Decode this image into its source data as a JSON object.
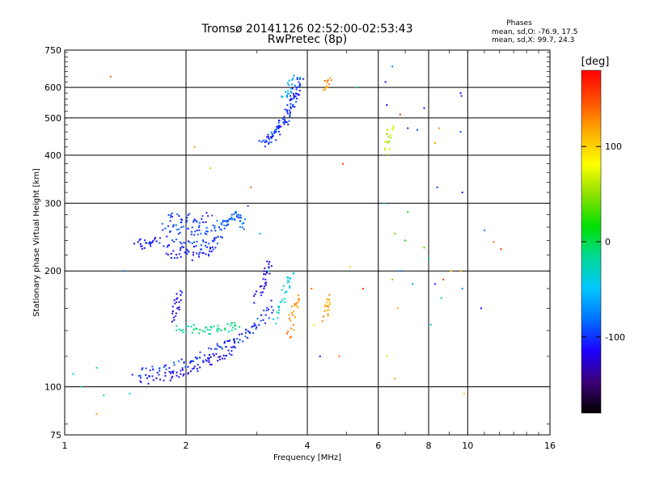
{
  "chart_data": {
    "type": "scatter",
    "title": "Tromsø 20141126 02:52:00-02:53:43",
    "subtitle": "RwPretec (8p)",
    "stats": {
      "header": "Phases",
      "line1": "mean, sd,O: -76.9, 17.5",
      "line2": "mean, sd,X:  99.7, 24.3"
    },
    "xlabel": "Frequency [MHz]",
    "ylabel": "Stationary phase Virtual Height [km]",
    "xscale": "log",
    "yscale": "log",
    "xlim": [
      1,
      16
    ],
    "ylim": [
      75,
      750
    ],
    "xticks": [
      1,
      2,
      4,
      6,
      8,
      10,
      16
    ],
    "yticks": [
      75,
      100,
      200,
      300,
      400,
      500,
      600,
      750
    ],
    "xgrid": [
      2,
      4,
      6,
      8,
      10
    ],
    "ygrid": [
      100,
      200,
      300,
      400,
      500,
      600
    ],
    "grid": true,
    "colorbar": {
      "label": "[deg]",
      "range": [
        -180,
        180
      ],
      "ticks": [
        100,
        0,
        -100
      ],
      "colormap": [
        "#000000",
        "#3c0078",
        "#1c00ff",
        "#0070ff",
        "#00c8ff",
        "#00d898",
        "#00e000",
        "#8ce000",
        "#ffff00",
        "#ffb000",
        "#ff5000",
        "#ff0000"
      ]
    },
    "series": [
      {
        "traces": [
          {
            "pts": [
              [
                3.1,
                425
              ],
              [
                3.2,
                440
              ],
              [
                3.3,
                455
              ],
              [
                3.4,
                470
              ],
              [
                3.5,
                490
              ],
              [
                3.6,
                515
              ],
              [
                3.65,
                540
              ],
              [
                3.7,
                565
              ],
              [
                3.75,
                590
              ],
              [
                3.8,
                615
              ],
              [
                3.85,
                635
              ]
            ],
            "phase": -95
          },
          {
            "pts": [
              [
                3.15,
                430
              ],
              [
                3.25,
                445
              ],
              [
                3.35,
                462
              ],
              [
                3.45,
                480
              ],
              [
                3.55,
                500
              ],
              [
                3.62,
                525
              ],
              [
                3.68,
                552
              ],
              [
                3.73,
                578
              ],
              [
                3.78,
                605
              ]
            ],
            "phase": -110
          },
          {
            "pts": [
              [
                3.5,
                560
              ],
              [
                3.55,
                585
              ],
              [
                3.6,
                610
              ],
              [
                3.65,
                630
              ]
            ],
            "phase": -60
          },
          {
            "pts": [
              [
                1.75,
                240
              ],
              [
                1.85,
                236
              ],
              [
                1.95,
                233
              ],
              [
                2.05,
                232
              ],
              [
                2.15,
                233
              ],
              [
                2.25,
                236
              ],
              [
                2.35,
                240
              ],
              [
                2.45,
                245
              ]
            ],
            "phase": -100
          },
          {
            "pts": [
              [
                1.8,
                225
              ],
              [
                1.9,
                221
              ],
              [
                2.0,
                219
              ],
              [
                2.1,
                220
              ],
              [
                2.2,
                222
              ],
              [
                2.3,
                226
              ],
              [
                2.4,
                231
              ]
            ],
            "phase": -105
          },
          {
            "pts": [
              [
                1.75,
                260
              ],
              [
                1.85,
                257
              ],
              [
                1.95,
                255
              ],
              [
                2.05,
                254
              ],
              [
                2.15,
                255
              ],
              [
                2.25,
                257
              ],
              [
                2.35,
                260
              ],
              [
                2.45,
                264
              ]
            ],
            "phase": -92
          },
          {
            "pts": [
              [
                1.8,
                275
              ],
              [
                1.9,
                275
              ],
              [
                2.0,
                274
              ],
              [
                2.1,
                274
              ],
              [
                2.2,
                275
              ],
              [
                2.3,
                276
              ]
            ],
            "phase": -100
          },
          {
            "pts": [
              [
                2.45,
                255
              ],
              [
                2.5,
                265
              ],
              [
                2.55,
                272
              ],
              [
                2.6,
                278
              ],
              [
                2.65,
                282
              ],
              [
                2.7,
                276
              ],
              [
                2.75,
                268
              ],
              [
                2.8,
                260
              ]
            ],
            "phase": -85
          },
          {
            "pts": [
              [
                1.5,
                240
              ],
              [
                1.55,
                236
              ],
              [
                1.6,
                233
              ],
              [
                1.65,
                238
              ],
              [
                1.7,
                243
              ]
            ],
            "phase": -110
          },
          {
            "pts": [
              [
                1.5,
                108
              ],
              [
                1.6,
                109
              ],
              [
                1.7,
                110
              ],
              [
                1.8,
                112
              ],
              [
                1.9,
                113
              ],
              [
                2.0,
                116
              ],
              [
                2.1,
                118
              ],
              [
                2.2,
                120
              ],
              [
                2.3,
                123
              ],
              [
                2.4,
                126
              ],
              [
                2.5,
                128
              ],
              [
                2.6,
                131
              ],
              [
                2.7,
                134
              ],
              [
                2.8,
                137
              ],
              [
                2.9,
                141
              ],
              [
                3.0,
                145
              ],
              [
                3.1,
                150
              ],
              [
                3.2,
                158
              ],
              [
                3.3,
                166
              ]
            ],
            "phase": -100
          },
          {
            "pts": [
              [
                1.55,
                104
              ],
              [
                1.65,
                105
              ],
              [
                1.75,
                106
              ],
              [
                1.85,
                107
              ],
              [
                1.95,
                109
              ],
              [
                2.05,
                111
              ],
              [
                2.15,
                113
              ],
              [
                2.25,
                116
              ],
              [
                2.35,
                118
              ],
              [
                2.45,
                121
              ],
              [
                2.55,
                124
              ],
              [
                2.65,
                126
              ]
            ],
            "phase": -115
          },
          {
            "pts": [
              [
                1.9,
                140
              ],
              [
                2.0,
                141
              ],
              [
                2.1,
                141
              ],
              [
                2.2,
                140
              ],
              [
                2.3,
                140
              ],
              [
                2.4,
                141
              ],
              [
                2.5,
                142
              ],
              [
                2.6,
                144
              ],
              [
                2.7,
                146
              ]
            ],
            "phase": -15
          },
          {
            "pts": [
              [
                3.0,
                170
              ],
              [
                3.05,
                180
              ],
              [
                3.1,
                188
              ],
              [
                3.15,
                196
              ],
              [
                3.2,
                203
              ],
              [
                3.25,
                208
              ]
            ],
            "phase": -120
          },
          {
            "pts": [
              [
                3.3,
                150
              ],
              [
                3.4,
                160
              ],
              [
                3.5,
                170
              ],
              [
                3.55,
                180
              ],
              [
                3.6,
                188
              ],
              [
                3.65,
                195
              ]
            ],
            "phase": -35
          },
          {
            "pts": [
              [
                3.6,
                135
              ],
              [
                3.65,
                145
              ],
              [
                3.7,
                155
              ],
              [
                3.75,
                165
              ],
              [
                3.8,
                172
              ]
            ],
            "phase": 130
          },
          {
            "pts": [
              [
                4.4,
                150
              ],
              [
                4.45,
                160
              ],
              [
                4.5,
                168
              ],
              [
                4.55,
                175
              ]
            ],
            "phase": 120
          },
          {
            "pts": [
              [
                1.85,
                150
              ],
              [
                1.88,
                158
              ],
              [
                1.9,
                165
              ],
              [
                1.92,
                172
              ],
              [
                1.95,
                178
              ]
            ],
            "phase": -115
          },
          {
            "pts": [
              [
                6.3,
                400
              ],
              [
                6.35,
                430
              ],
              [
                6.4,
                460
              ],
              [
                6.45,
                490
              ]
            ],
            "phase": 60
          },
          {
            "pts": [
              [
                4.4,
                600
              ],
              [
                4.5,
                615
              ],
              [
                4.6,
                625
              ]
            ],
            "phase": 130
          }
        ],
        "scatter": [
          [
            1.05,
            108,
            -50
          ],
          [
            1.1,
            100,
            -20
          ],
          [
            1.25,
            95,
            -40
          ],
          [
            1.2,
            85,
            120
          ],
          [
            1.4,
            200,
            -80
          ],
          [
            1.3,
            640,
            140
          ],
          [
            2.1,
            420,
            120
          ],
          [
            2.3,
            370,
            110
          ],
          [
            2.9,
            330,
            140
          ],
          [
            2.85,
            295,
            -90
          ],
          [
            3.05,
            250,
            -60
          ],
          [
            3.2,
            200,
            -20
          ],
          [
            4.9,
            380,
            160
          ],
          [
            5.3,
            600,
            -10
          ],
          [
            5.1,
            205,
            100
          ],
          [
            5.5,
            180,
            160
          ],
          [
            6.25,
            620,
            -110
          ],
          [
            6.3,
            540,
            -120
          ],
          [
            6.5,
            680,
            -70
          ],
          [
            6.8,
            510,
            160
          ],
          [
            7.1,
            470,
            -110
          ],
          [
            7.5,
            465,
            -90
          ],
          [
            7.8,
            530,
            -120
          ],
          [
            8.5,
            470,
            130
          ],
          [
            8.3,
            430,
            120
          ],
          [
            8.4,
            330,
            -100
          ],
          [
            9.7,
            320,
            -120
          ],
          [
            9.6,
            460,
            -90
          ],
          [
            9.6,
            580,
            -110
          ],
          [
            9.65,
            570,
            -100
          ],
          [
            6.2,
            300,
            -40
          ],
          [
            6.8,
            200,
            -80
          ],
          [
            7.1,
            285,
            20
          ],
          [
            6.6,
            250,
            40
          ],
          [
            7.0,
            240,
            10
          ],
          [
            7.8,
            230,
            30
          ],
          [
            8.0,
            215,
            -30
          ],
          [
            8.3,
            185,
            -100
          ],
          [
            8.7,
            190,
            160
          ],
          [
            9.1,
            200,
            100
          ],
          [
            9.7,
            180,
            -70
          ],
          [
            9.6,
            200,
            120
          ],
          [
            11.0,
            255,
            -80
          ],
          [
            11.6,
            238,
            140
          ],
          [
            12.1,
            228,
            160
          ],
          [
            6.5,
            190,
            40
          ],
          [
            6.7,
            160,
            120
          ],
          [
            7.3,
            185,
            -70
          ],
          [
            8.1,
            145,
            -30
          ],
          [
            8.6,
            170,
            -20
          ],
          [
            6.3,
            120,
            60
          ],
          [
            6.6,
            105,
            120
          ],
          [
            9.8,
            96,
            110
          ],
          [
            10.8,
            160,
            -110
          ],
          [
            4.3,
            120,
            -110
          ],
          [
            4.8,
            120,
            140
          ],
          [
            4.1,
            180,
            140
          ],
          [
            4.15,
            145,
            90
          ],
          [
            1.2,
            112,
            -20
          ],
          [
            1.45,
            96,
            -40
          ],
          [
            1.0,
            99,
            -60
          ]
        ]
      }
    ]
  }
}
